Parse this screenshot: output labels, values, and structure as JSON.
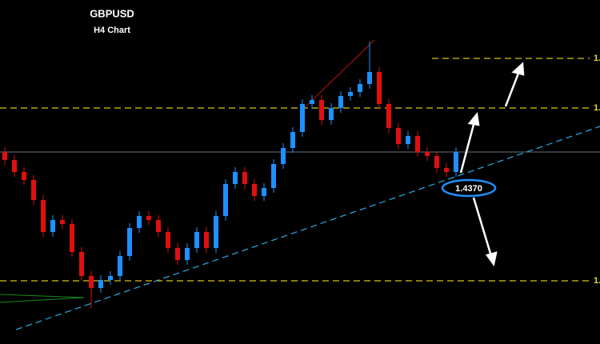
{
  "chart_data": {
    "type": "candlestick",
    "title": "GBPUSD",
    "subtitle": "H4 Chart",
    "annotation": "1.4370",
    "ylim": [
      1.4173,
      1.4603
    ],
    "yticks": [
      {
        "value": 1.453,
        "label": "1."
      },
      {
        "value": 1.4468,
        "label": "1."
      },
      {
        "value": 1.4252,
        "label": "1."
      }
    ],
    "grid": true,
    "up_color": "#1e90ff",
    "down_color": "#e01010",
    "open": [
      1.4413,
      1.4403,
      1.4388,
      1.4378,
      1.4353,
      1.4313,
      1.4328,
      1.4323,
      1.4288,
      1.4258,
      1.4243,
      1.4253,
      1.4258,
      1.4283,
      1.4318,
      1.4333,
      1.4328,
      1.4313,
      1.4293,
      1.4278,
      1.4293,
      1.4313,
      1.4293,
      1.4333,
      1.4373,
      1.4388,
      1.4373,
      1.4358,
      1.4368,
      1.4398,
      1.4418,
      1.4438,
      1.4473,
      1.4478,
      1.4453,
      1.4468,
      1.4483,
      1.4488,
      1.4498,
      1.4513,
      1.4473,
      1.4443,
      1.4423,
      1.4433,
      1.4413,
      1.4408,
      1.4393,
      1.4388
    ],
    "high": [
      1.4419,
      1.4409,
      1.4394,
      1.4384,
      1.4359,
      1.4334,
      1.4334,
      1.4329,
      1.4294,
      1.4264,
      1.4259,
      1.4264,
      1.4289,
      1.4324,
      1.4339,
      1.4339,
      1.4334,
      1.4319,
      1.4299,
      1.4299,
      1.4319,
      1.4319,
      1.4339,
      1.4379,
      1.4394,
      1.4394,
      1.4379,
      1.4374,
      1.4404,
      1.4424,
      1.4444,
      1.4479,
      1.4484,
      1.4484,
      1.4474,
      1.4489,
      1.4494,
      1.4504,
      1.4551,
      1.4519,
      1.4479,
      1.4449,
      1.4439,
      1.4439,
      1.4419,
      1.4414,
      1.4399,
      1.4419
    ],
    "low": [
      1.4397,
      1.4382,
      1.4372,
      1.4347,
      1.4307,
      1.4307,
      1.4317,
      1.4282,
      1.4252,
      1.4218,
      1.4237,
      1.4247,
      1.4252,
      1.4277,
      1.4312,
      1.4322,
      1.4307,
      1.4287,
      1.4272,
      1.4272,
      1.4287,
      1.4287,
      1.4287,
      1.4327,
      1.4367,
      1.4367,
      1.4352,
      1.4352,
      1.4362,
      1.4392,
      1.4412,
      1.4432,
      1.4467,
      1.4447,
      1.4447,
      1.4462,
      1.4477,
      1.4482,
      1.4492,
      1.4467,
      1.4437,
      1.4417,
      1.4417,
      1.4407,
      1.4402,
      1.4387,
      1.4382,
      1.4382
    ],
    "close": [
      1.4403,
      1.4388,
      1.4378,
      1.4353,
      1.4313,
      1.4328,
      1.4323,
      1.4288,
      1.4258,
      1.4243,
      1.4253,
      1.4258,
      1.4283,
      1.4318,
      1.4333,
      1.4328,
      1.4313,
      1.4293,
      1.4278,
      1.4293,
      1.4313,
      1.4293,
      1.4333,
      1.4373,
      1.4388,
      1.4373,
      1.4358,
      1.4368,
      1.4398,
      1.4418,
      1.4438,
      1.4473,
      1.4478,
      1.4453,
      1.4468,
      1.4483,
      1.4488,
      1.4498,
      1.4513,
      1.4473,
      1.4443,
      1.4423,
      1.4433,
      1.4413,
      1.4408,
      1.4393,
      1.4388,
      1.4413
    ]
  }
}
